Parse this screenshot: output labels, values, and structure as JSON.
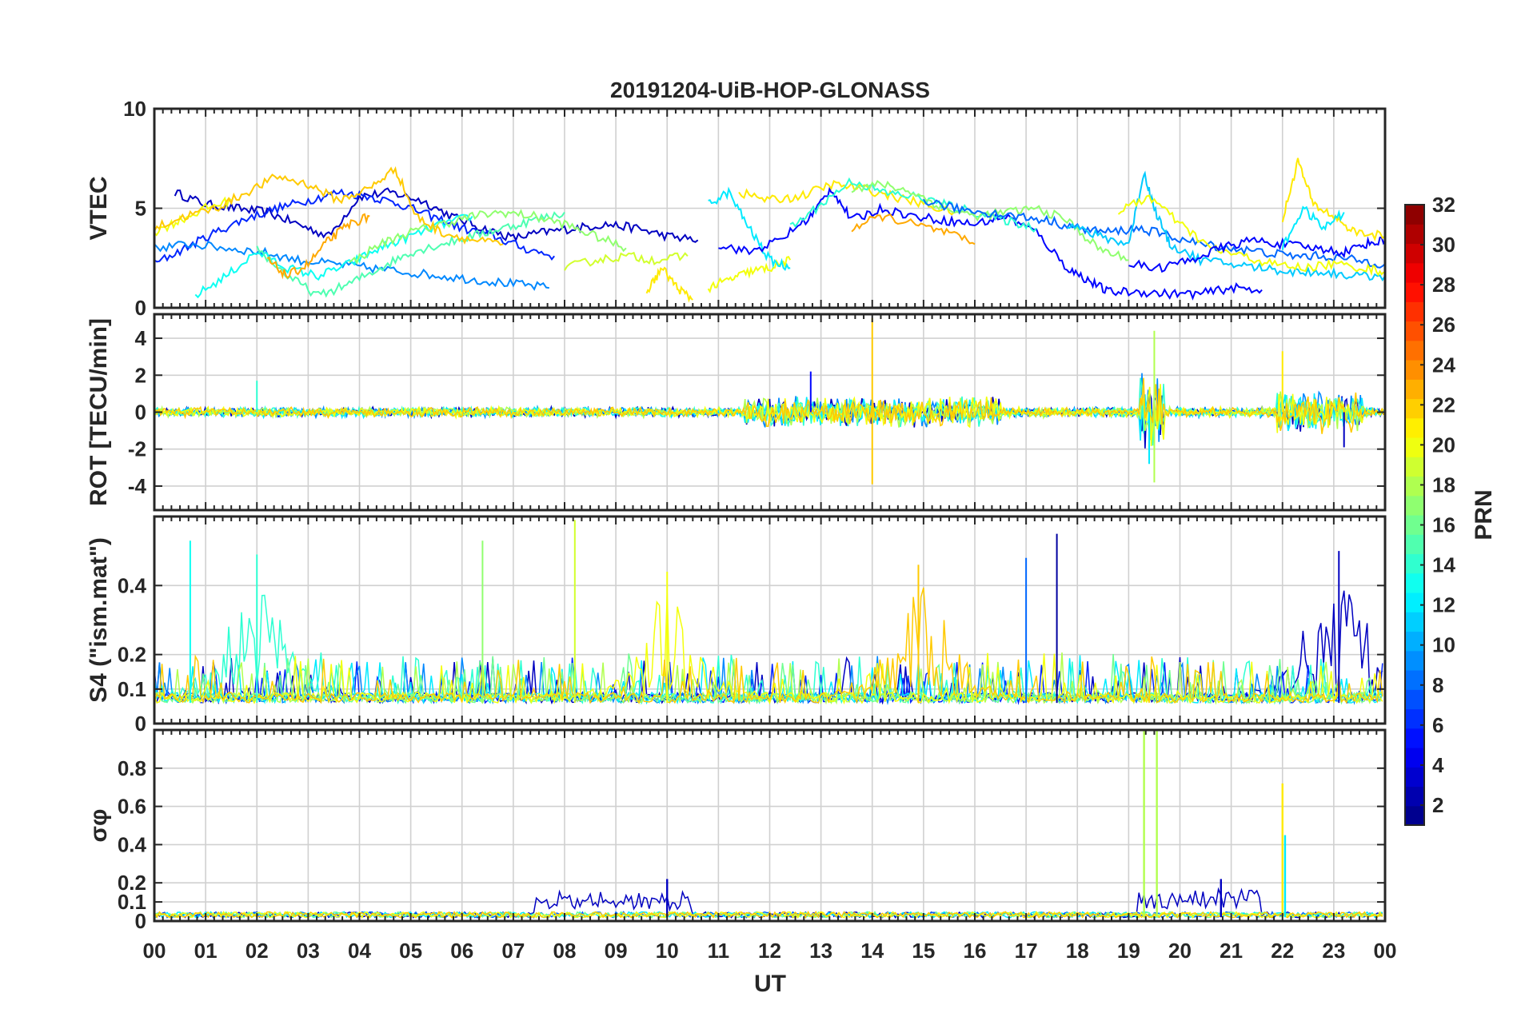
{
  "figure": {
    "title": "20191204-UiB-HOP-GLONASS"
  },
  "chart_data": {
    "type": "line",
    "title": "20191204-UiB-HOP-GLONASS",
    "xlabel": "UT",
    "x_tick_labels": [
      "00",
      "01",
      "02",
      "03",
      "04",
      "05",
      "06",
      "07",
      "08",
      "09",
      "10",
      "11",
      "12",
      "13",
      "14",
      "15",
      "16",
      "17",
      "18",
      "19",
      "20",
      "21",
      "22",
      "23",
      "00"
    ],
    "xlim": [
      0,
      24
    ],
    "grid": true,
    "colorbar": {
      "label": "PRN",
      "range": [
        1,
        32
      ],
      "ticks": [
        2,
        4,
        6,
        8,
        10,
        12,
        14,
        16,
        18,
        20,
        22,
        24,
        26,
        28,
        30,
        32
      ],
      "colormap": "jet",
      "levels": 32
    },
    "panels": [
      {
        "ylabel": "VTEC",
        "ylim": [
          0,
          10
        ],
        "yticks": [
          0,
          5,
          10
        ],
        "series": [
          {
            "prn": 3,
            "x": [
              0.4,
              1.0,
              1.6,
              2.2,
              2.8,
              3.4,
              4.0,
              4.6,
              5.2,
              5.8,
              6.4,
              7.0,
              7.6,
              8.2,
              8.8,
              9.4,
              10.0,
              10.6
            ],
            "y": [
              5.8,
              5.2,
              5.0,
              4.8,
              4.2,
              3.6,
              5.6,
              5.8,
              5.4,
              4.6,
              4.0,
              3.5,
              3.8,
              4.0,
              4.2,
              4.0,
              3.6,
              3.4
            ]
          },
          {
            "prn": 6,
            "x": [
              0.0,
              0.6,
              1.2,
              1.8,
              2.4,
              3.0,
              3.6,
              4.2,
              4.8,
              5.4,
              6.0,
              6.6,
              7.2,
              7.8
            ],
            "y": [
              2.2,
              3.0,
              3.8,
              4.5,
              5.0,
              5.4,
              5.8,
              5.6,
              5.2,
              4.6,
              4.0,
              3.6,
              3.0,
              2.6
            ]
          },
          {
            "prn": 9,
            "x": [
              0.0,
              0.7,
              1.4,
              2.1,
              2.8,
              3.5,
              4.2,
              4.9,
              5.6,
              6.3,
              7.0,
              7.7
            ],
            "y": [
              3.0,
              3.2,
              3.0,
              2.8,
              2.4,
              2.2,
              2.0,
              1.8,
              1.6,
              1.4,
              1.2,
              1.0
            ]
          },
          {
            "prn": 13,
            "x": [
              0.8,
              1.4,
              2.0,
              2.6,
              3.2,
              3.8,
              4.4,
              5.0,
              5.6,
              6.2
            ],
            "y": [
              0.6,
              1.6,
              2.8,
              2.0,
              1.6,
              2.2,
              3.0,
              3.6,
              4.2,
              4.6
            ]
          },
          {
            "prn": 15,
            "x": [
              2.0,
              2.6,
              3.2,
              3.8,
              4.4,
              5.0,
              5.6,
              6.2,
              6.8,
              7.4,
              8.0
            ],
            "y": [
              3.0,
              1.6,
              0.6,
              1.2,
              2.0,
              2.8,
              3.2,
              3.6,
              4.0,
              4.4,
              4.8
            ]
          },
          {
            "prn": 17,
            "x": [
              3.8,
              4.4,
              5.0,
              5.6,
              6.2,
              6.8,
              7.4,
              8.0,
              8.6,
              9.2
            ],
            "y": [
              2.2,
              3.2,
              3.8,
              4.2,
              4.6,
              4.8,
              4.6,
              4.2,
              3.6,
              3.0
            ]
          },
          {
            "prn": 20,
            "x": [
              0.0,
              0.5,
              1.0,
              1.5
            ],
            "y": [
              3.8,
              4.4,
              5.0,
              5.4
            ]
          },
          {
            "prn": 22,
            "x": [
              0.0,
              0.6,
              1.2,
              1.8,
              2.4,
              3.0,
              3.6,
              4.2,
              4.7,
              5.1,
              5.6,
              6.2,
              6.8
            ],
            "y": [
              4.0,
              4.6,
              5.0,
              5.8,
              6.6,
              6.2,
              5.4,
              6.0,
              7.0,
              4.6,
              3.8,
              3.4,
              3.2
            ]
          },
          {
            "prn": 23,
            "x": [
              2.2,
              2.6,
              3.0,
              3.4,
              3.8,
              4.2
            ],
            "y": [
              2.4,
              1.6,
              2.2,
              3.4,
              4.2,
              4.6
            ]
          },
          {
            "prn": 19,
            "x": [
              8.0,
              8.6,
              9.2,
              9.8,
              10.4
            ],
            "y": [
              2.0,
              2.4,
              2.6,
              2.4,
              2.6
            ]
          },
          {
            "prn": 21,
            "x": [
              9.6,
              9.9,
              10.2,
              10.5
            ],
            "y": [
              0.8,
              2.0,
              1.0,
              0.4
            ]
          },
          {
            "prn": 20,
            "x": [
              10.8,
              11.2,
              11.6,
              12.0,
              12.4
            ],
            "y": [
              1.0,
              1.4,
              1.8,
              2.0,
              2.4
            ]
          },
          {
            "prn": 12,
            "x": [
              10.8,
              11.2,
              11.6,
              12.0,
              12.4
            ],
            "y": [
              5.2,
              5.8,
              4.0,
              2.4,
              2.0
            ]
          },
          {
            "prn": 5,
            "x": [
              11.0,
              11.6,
              12.2,
              12.8,
              13.2,
              13.6,
              14.2,
              14.8,
              15.4,
              16.0,
              16.6,
              17.2,
              17.8,
              18.2,
              18.6,
              19.2,
              19.8,
              20.4,
              21.0,
              21.6
            ],
            "y": [
              3.2,
              2.8,
              3.4,
              4.6,
              6.0,
              4.4,
              5.0,
              4.6,
              4.4,
              4.2,
              4.6,
              3.8,
              2.0,
              1.4,
              0.8,
              0.8,
              0.7,
              0.7,
              1.0,
              0.9
            ]
          },
          {
            "prn": 21,
            "x": [
              11.4,
              12.0,
              12.6,
              13.2,
              13.8,
              14.4,
              15.0,
              15.6
            ],
            "y": [
              5.8,
              5.4,
              5.6,
              6.2,
              6.0,
              5.6,
              5.2,
              4.8
            ]
          },
          {
            "prn": 14,
            "x": [
              12.4,
              13.0,
              13.6,
              14.2,
              14.8,
              15.4,
              16.0,
              16.6,
              17.2
            ],
            "y": [
              4.0,
              5.2,
              6.4,
              5.8,
              5.6,
              5.2,
              4.8,
              4.4,
              4.0
            ]
          },
          {
            "prn": 17,
            "x": [
              13.6,
              14.2,
              14.8,
              15.4,
              16.0,
              16.6,
              17.2,
              17.8,
              18.4,
              19.0
            ],
            "y": [
              6.0,
              6.2,
              5.8,
              5.0,
              4.6,
              4.8,
              5.0,
              4.4,
              3.0,
              2.4
            ]
          },
          {
            "prn": 23,
            "x": [
              13.6,
              14.2,
              14.8,
              15.4,
              16.0
            ],
            "y": [
              4.0,
              4.6,
              4.2,
              3.8,
              3.2
            ]
          },
          {
            "prn": 8,
            "x": [
              15.0,
              15.6,
              16.2,
              16.8,
              17.4,
              18.0,
              18.6,
              19.2,
              19.8,
              20.4,
              21.0,
              21.6,
              22.2,
              22.8,
              23.4,
              24.0
            ],
            "y": [
              5.4,
              5.0,
              4.8,
              4.6,
              4.4,
              4.0,
              3.8,
              4.0,
              3.6,
              3.2,
              3.0,
              2.8,
              2.6,
              2.6,
              2.4,
              2.2
            ]
          },
          {
            "prn": 11,
            "x": [
              17.8,
              18.4,
              19.0,
              19.3,
              19.5,
              19.8,
              20.4,
              21.0,
              21.6,
              22.2,
              22.8,
              23.4,
              24.0
            ],
            "y": [
              4.2,
              3.6,
              3.2,
              6.8,
              5.0,
              3.2,
              2.4,
              2.2,
              2.0,
              1.8,
              1.8,
              1.6,
              1.6
            ]
          },
          {
            "prn": 20,
            "x": [
              18.8,
              19.4,
              20.0,
              20.6,
              21.2,
              21.8,
              22.4,
              23.0,
              23.6,
              24.0
            ],
            "y": [
              4.8,
              5.6,
              4.2,
              3.0,
              2.6,
              2.2,
              2.0,
              2.2,
              2.0,
              1.8
            ]
          },
          {
            "prn": 5,
            "x": [
              19.0,
              19.6,
              20.2,
              20.8,
              21.4,
              22.0,
              22.6,
              23.2,
              23.6,
              24.0
            ],
            "y": [
              2.2,
              2.0,
              2.4,
              3.0,
              3.4,
              3.2,
              3.0,
              2.8,
              3.2,
              3.4
            ]
          },
          {
            "prn": 21,
            "x": [
              22.0,
              22.3,
              22.6,
              23.0,
              23.4,
              24.0
            ],
            "y": [
              4.4,
              7.4,
              5.2,
              4.6,
              3.8,
              3.6
            ]
          },
          {
            "prn": 12,
            "x": [
              22.0,
              22.4,
              22.8,
              23.2
            ],
            "y": [
              3.0,
              5.0,
              4.0,
              4.8
            ]
          }
        ]
      },
      {
        "ylabel": "ROT [TECU/min]",
        "ylim": [
          -5.3,
          5.3
        ],
        "yticks": [
          -4,
          -2,
          0,
          2,
          4
        ],
        "noise_bands": [
          {
            "x_range": [
              0,
              24
            ],
            "amplitude": 0.2
          },
          {
            "x_range": [
              11.5,
              16.5
            ],
            "amplitude": 0.6
          },
          {
            "x_range": [
              19.2,
              19.7
            ],
            "amplitude": 1.5
          },
          {
            "x_range": [
              21.9,
              23.6
            ],
            "amplitude": 0.8
          }
        ],
        "spikes": [
          {
            "prn": 22,
            "x": 14.0,
            "y": 5.1
          },
          {
            "prn": 22,
            "x": 14.0,
            "y": -3.9
          },
          {
            "prn": 18,
            "x": 19.5,
            "y": 4.4
          },
          {
            "prn": 18,
            "x": 19.5,
            "y": -3.8
          },
          {
            "prn": 12,
            "x": 19.4,
            "y": -2.8
          },
          {
            "prn": 21,
            "x": 22.0,
            "y": 3.3
          },
          {
            "prn": 3,
            "x": 23.2,
            "y": -1.9
          },
          {
            "prn": 5,
            "x": 12.8,
            "y": 2.2
          },
          {
            "prn": 14,
            "x": 2.0,
            "y": 1.7
          }
        ]
      },
      {
        "ylabel": "S4 (\"ism.mat\")",
        "ylim": [
          0,
          0.6
        ],
        "yticks": [
          0,
          0.1,
          0.2,
          0.4
        ],
        "baseline": 0.06,
        "activity_peaks": [
          {
            "prn": 13,
            "x": 0.7,
            "y": 0.53
          },
          {
            "prn": 14,
            "x": 2.0,
            "y": 0.49
          },
          {
            "prn": 17,
            "x": 6.4,
            "y": 0.53
          },
          {
            "prn": 19,
            "x": 8.2,
            "y": 0.59
          },
          {
            "prn": 20,
            "x": 10.0,
            "y": 0.44
          },
          {
            "prn": 22,
            "x": 14.9,
            "y": 0.46
          },
          {
            "prn": 8,
            "x": 17.0,
            "y": 0.48
          },
          {
            "prn": 2,
            "x": 17.6,
            "y": 0.55
          },
          {
            "prn": 3,
            "x": 23.1,
            "y": 0.5
          }
        ]
      },
      {
        "ylabel": "σφ",
        "ylim": [
          0,
          1.0
        ],
        "yticks": [
          0,
          0.1,
          0.2,
          0.4,
          0.6,
          0.8
        ],
        "baseline": 0.03,
        "spikes": [
          {
            "prn": 18,
            "x": 19.3,
            "y": 1.0
          },
          {
            "prn": 18,
            "x": 19.55,
            "y": 1.0
          },
          {
            "prn": 21,
            "x": 22.0,
            "y": 0.72
          },
          {
            "prn": 12,
            "x": 22.05,
            "y": 0.45
          },
          {
            "prn": 3,
            "x": 10.0,
            "y": 0.22
          },
          {
            "prn": 3,
            "x": 20.8,
            "y": 0.22
          }
        ],
        "elevated_band": [
          {
            "prn": 3,
            "x_range": [
              7.4,
              10.5
            ],
            "level": 0.12
          },
          {
            "prn": 3,
            "x_range": [
              19.2,
              21.6
            ],
            "level": 0.13
          }
        ]
      }
    ]
  }
}
